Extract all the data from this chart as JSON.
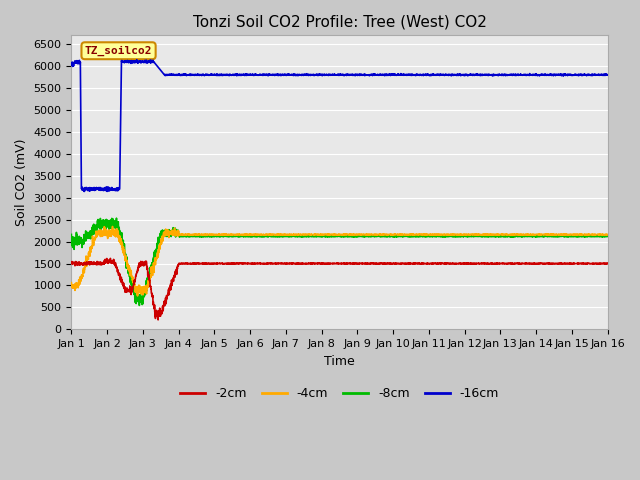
{
  "title": "Tonzi Soil CO2 Profile: Tree (West) CO2",
  "xlabel": "Time",
  "ylabel": "Soil CO2 (mV)",
  "ylim": [
    0,
    6700
  ],
  "yticks": [
    0,
    500,
    1000,
    1500,
    2000,
    2500,
    3000,
    3500,
    4000,
    4500,
    5000,
    5500,
    6000,
    6500
  ],
  "plot_bg_color": "#e8e8e8",
  "fig_bg_color": "#c8c8c8",
  "legend_label": "TZ_soilco2",
  "legend_box_color": "#ffff99",
  "legend_box_edge": "#cc8800",
  "series_labels": [
    "-2cm",
    "-4cm",
    "-8cm",
    "-16cm"
  ],
  "series_colors": [
    "#cc0000",
    "#ffaa00",
    "#00bb00",
    "#0000cc"
  ],
  "line_width": 1.2,
  "title_fontsize": 11,
  "axis_label_fontsize": 9,
  "tick_label_fontsize": 8,
  "x_dates": [
    "Jan 1",
    "Jan 2",
    "Jan 3",
    "Jan 4",
    "Jan 5",
    "Jan 6",
    "Jan 7",
    "Jan 8",
    "Jan 9",
    "Jan 10",
    "Jan 11",
    "Jan 12",
    "Jan 13",
    "Jan 14",
    "Jan 15",
    "Jan 16"
  ]
}
